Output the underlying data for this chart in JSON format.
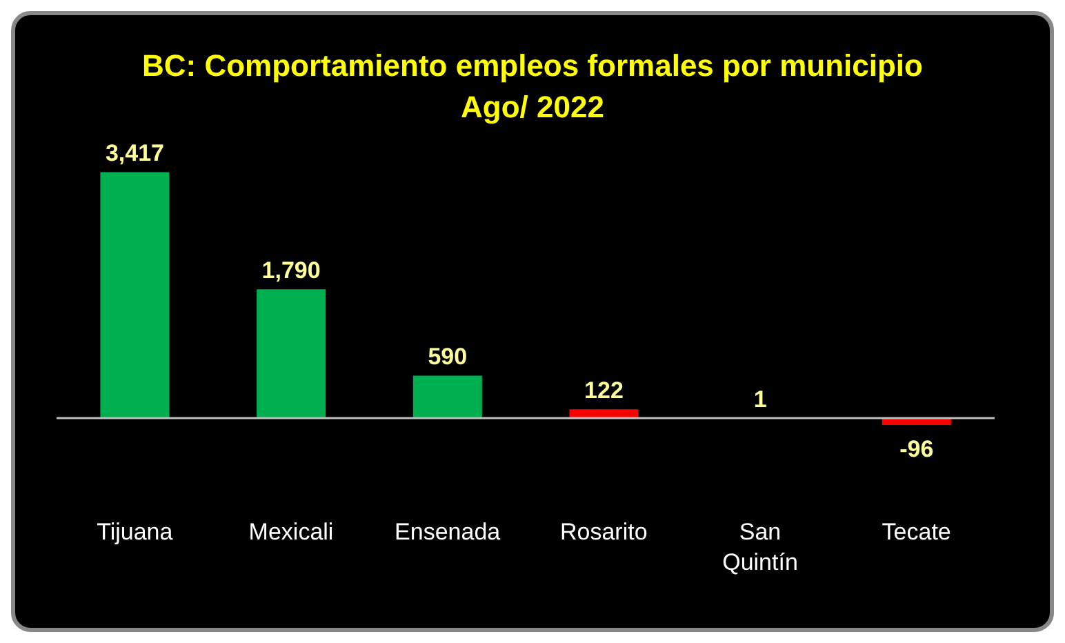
{
  "chart_data": {
    "type": "bar",
    "title": "BC:  Comportamiento empleos formales por municipio",
    "subtitle": "Ago/ 2022",
    "categories": [
      "Tijuana",
      "Mexicali",
      "Ensenada",
      "Rosarito",
      "San Quintín",
      "Tecate"
    ],
    "values": [
      3417,
      1790,
      590,
      122,
      1,
      -96
    ],
    "colors": [
      "#00b050",
      "#00b050",
      "#00b050",
      "#ff0000",
      "#ff0000",
      "#ff0000"
    ],
    "value_labels": [
      "3,417",
      "1,790",
      "590",
      "122",
      "1",
      "-96"
    ],
    "grid": false,
    "legend": false
  }
}
